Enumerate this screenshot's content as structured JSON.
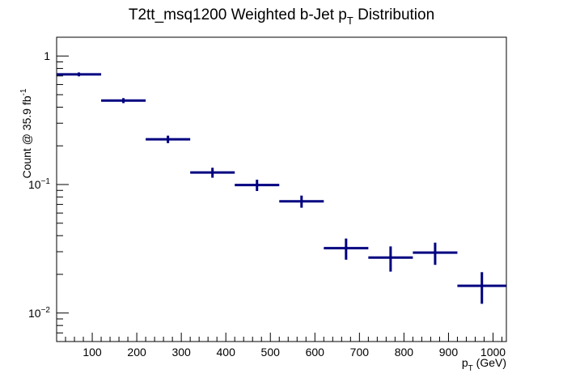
{
  "chart_data": {
    "type": "scatter",
    "title_main": "T2tt_msq1200 Weighted b-Jet p",
    "title_sub": "T",
    "title_tail": " Distribution",
    "xlabel_main": "p",
    "xlabel_sub": "T",
    "xlabel_tail": " (GeV)",
    "ylabel_main": "Count @ 35.9 fb",
    "ylabel_sup": "-1",
    "x_ticks": [
      "100",
      "200",
      "300",
      "400",
      "500",
      "600",
      "700",
      "800",
      "900",
      "1000"
    ],
    "y_ticks": [
      {
        "base": "1",
        "exp": ""
      },
      {
        "base": "10",
        "exp": "−1"
      },
      {
        "base": "10",
        "exp": "−2"
      }
    ],
    "xlim": [
      20,
      1030
    ],
    "ylim": [
      0.006,
      1.4
    ],
    "yscale": "log",
    "grid": false,
    "legend": "none",
    "color": "#000080",
    "points": [
      {
        "xlow": 20,
        "xhigh": 120,
        "y": 0.72,
        "yerr": 0.025
      },
      {
        "xlow": 120,
        "xhigh": 220,
        "y": 0.45,
        "yerr": 0.02
      },
      {
        "xlow": 220,
        "xhigh": 320,
        "y": 0.225,
        "yerr": 0.015
      },
      {
        "xlow": 320,
        "xhigh": 420,
        "y": 0.124,
        "yerr": 0.011
      },
      {
        "xlow": 420,
        "xhigh": 520,
        "y": 0.099,
        "yerr": 0.01
      },
      {
        "xlow": 520,
        "xhigh": 620,
        "y": 0.074,
        "yerr": 0.008
      },
      {
        "xlow": 620,
        "xhigh": 720,
        "y": 0.032,
        "yerr": 0.006
      },
      {
        "xlow": 720,
        "xhigh": 820,
        "y": 0.027,
        "yerr": 0.006
      },
      {
        "xlow": 820,
        "xhigh": 920,
        "y": 0.0295,
        "yerr": 0.0058
      },
      {
        "xlow": 920,
        "xhigh": 1030,
        "y": 0.0163,
        "yerr": 0.0045
      }
    ]
  }
}
